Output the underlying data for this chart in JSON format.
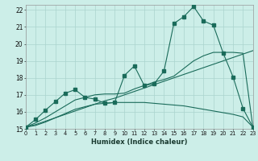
{
  "xlabel": "Humidex (Indice chaleur)",
  "background_color": "#cceee8",
  "grid_color": "#aad4ce",
  "line_color": "#1a6b5a",
  "x_values": [
    0,
    1,
    2,
    3,
    4,
    5,
    6,
    7,
    8,
    9,
    10,
    11,
    12,
    13,
    14,
    15,
    16,
    17,
    18,
    19,
    20,
    21,
    22,
    23
  ],
  "line1_y": [
    15.1,
    15.55,
    16.1,
    16.6,
    17.1,
    17.3,
    16.85,
    16.75,
    16.5,
    16.55,
    18.15,
    18.7,
    17.55,
    17.65,
    18.4,
    21.2,
    21.6,
    22.2,
    21.35,
    21.1,
    19.45,
    18.05,
    16.2,
    15.1
  ],
  "line2_y": [
    15.1,
    15.25,
    15.45,
    15.65,
    15.85,
    16.05,
    16.25,
    16.45,
    16.65,
    16.8,
    17.0,
    17.2,
    17.4,
    17.6,
    17.8,
    18.0,
    18.2,
    18.4,
    18.6,
    18.8,
    19.0,
    19.2,
    19.4,
    19.6
  ],
  "line3_y": [
    15.1,
    15.2,
    15.4,
    15.65,
    15.9,
    16.15,
    16.3,
    16.45,
    16.5,
    16.55,
    16.55,
    16.55,
    16.55,
    16.5,
    16.45,
    16.4,
    16.35,
    16.25,
    16.15,
    16.05,
    15.95,
    15.85,
    15.7,
    15.1
  ],
  "line4_y": [
    15.1,
    15.35,
    15.65,
    16.0,
    16.35,
    16.7,
    16.85,
    17.0,
    17.05,
    17.05,
    17.1,
    17.35,
    17.55,
    17.75,
    17.9,
    18.1,
    18.55,
    19.0,
    19.3,
    19.5,
    19.5,
    19.5,
    19.45,
    15.1
  ],
  "xlim": [
    0,
    23
  ],
  "ylim": [
    15.0,
    22.3
  ],
  "yticks": [
    15,
    16,
    17,
    18,
    19,
    20,
    21,
    22
  ],
  "xtick_labels": [
    "0",
    "1",
    "2",
    "3",
    "4",
    "5",
    "6",
    "7",
    "8",
    "9",
    "10",
    "11",
    "12",
    "13",
    "14",
    "15",
    "16",
    "17",
    "18",
    "19",
    "20",
    "21",
    "22",
    "23"
  ]
}
